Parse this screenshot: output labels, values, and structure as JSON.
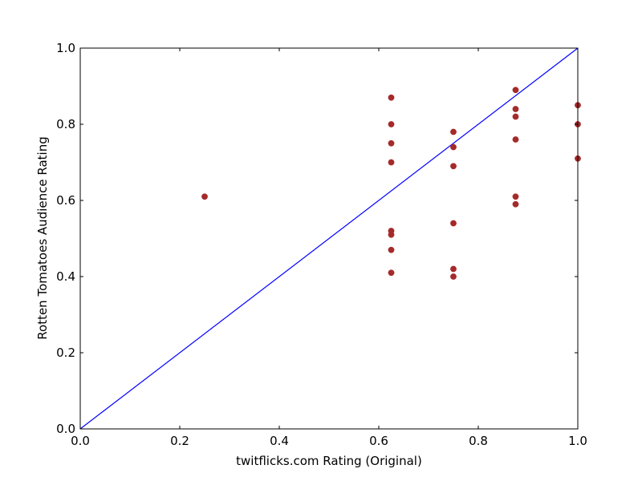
{
  "chart_data": {
    "type": "scatter",
    "title": "",
    "xlabel": "twitflicks.com Rating (Original)",
    "ylabel": "Rotten Tomatoes Audience Rating",
    "xlim": [
      0.0,
      1.0
    ],
    "ylim": [
      0.0,
      1.0
    ],
    "xticks": [
      "0.0",
      "0.2",
      "0.4",
      "0.6",
      "0.8",
      "1.0"
    ],
    "yticks": [
      "0.0",
      "0.2",
      "0.4",
      "0.6",
      "0.8",
      "1.0"
    ],
    "grid": false,
    "legend": "none",
    "series": [
      {
        "kind": "scatter",
        "color": "#a52a2a",
        "points": [
          [
            0.25,
            0.61
          ],
          [
            0.625,
            0.87
          ],
          [
            0.625,
            0.8
          ],
          [
            0.625,
            0.75
          ],
          [
            0.625,
            0.7
          ],
          [
            0.625,
            0.52
          ],
          [
            0.625,
            0.51
          ],
          [
            0.625,
            0.47
          ],
          [
            0.625,
            0.41
          ],
          [
            0.75,
            0.78
          ],
          [
            0.75,
            0.74
          ],
          [
            0.75,
            0.69
          ],
          [
            0.75,
            0.54
          ],
          [
            0.75,
            0.42
          ],
          [
            0.75,
            0.4
          ],
          [
            0.875,
            0.89
          ],
          [
            0.875,
            0.84
          ],
          [
            0.875,
            0.82
          ],
          [
            0.875,
            0.76
          ],
          [
            0.875,
            0.61
          ],
          [
            0.875,
            0.59
          ],
          [
            1.0,
            0.85
          ],
          [
            1.0,
            0.8
          ],
          [
            1.0,
            0.71
          ]
        ]
      },
      {
        "kind": "line",
        "color": "#0000ff",
        "points": [
          [
            0.0,
            0.0
          ],
          [
            1.0,
            1.0
          ]
        ]
      }
    ]
  }
}
